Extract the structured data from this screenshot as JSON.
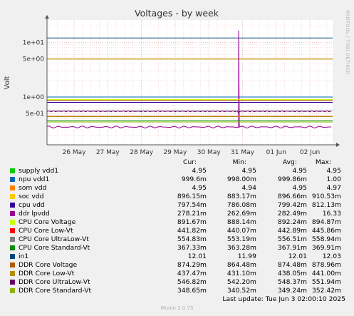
{
  "chart_data": {
    "type": "line",
    "title": "Voltages - by week",
    "ylabel": "Volt",
    "yscale": "log",
    "ylim": [
      0.18,
      30
    ],
    "y_ticks": [
      {
        "v": 0.5,
        "label": "5e-01"
      },
      {
        "v": 1,
        "label": "1e+00"
      },
      {
        "v": 5,
        "label": "5e+00"
      },
      {
        "v": 10,
        "label": "1e+01"
      }
    ],
    "x_ticks": [
      "26 May",
      "27 May",
      "28 May",
      "29 May",
      "30 May",
      "31 May",
      "01 Jun",
      "02 Jun"
    ],
    "grid": true,
    "series": [
      {
        "name": "supply vdd1",
        "color": "#00cc00",
        "cur": "4.95",
        "min": "4.95",
        "avg": "4.95",
        "max": "4.95",
        "level": 4.95
      },
      {
        "name": "npu vdd1",
        "color": "#0066b3",
        "cur": "999.6m",
        "min": "998.00m",
        "avg": "999.86m",
        "max": "1.00",
        "level": 0.9999
      },
      {
        "name": "som vdd",
        "color": "#ff8000",
        "cur": "4.95",
        "min": "4.94",
        "avg": "4.95",
        "max": "4.97",
        "level": 4.95
      },
      {
        "name": "soc vdd",
        "color": "#ffcc00",
        "cur": "896.15m",
        "min": "883.17m",
        "avg": "896.66m",
        "max": "910.53m",
        "level": 0.8966
      },
      {
        "name": "cpu vdd",
        "color": "#330099",
        "cur": "797.54m",
        "min": "786.08m",
        "avg": "799.42m",
        "max": "812.13m",
        "level": 0.7994
      },
      {
        "name": "ddr lpvdd",
        "color": "#990099",
        "cur": "278.21m",
        "min": "262.69m",
        "avg": "282.49m",
        "max": "16.33",
        "level": 0.2825,
        "spike": 16.33
      },
      {
        "name": "CPU Core Voltage",
        "color": "#ccff00",
        "cur": "891.67m",
        "min": "888.14m",
        "avg": "892.24m",
        "max": "894.87m",
        "level": 0.8922
      },
      {
        "name": "CPU Core Low-Vt",
        "color": "#ff0000",
        "cur": "441.82m",
        "min": "440.07m",
        "avg": "442.89m",
        "max": "445.86m",
        "level": 0.4429
      },
      {
        "name": "CPU Core UltraLow-Vt",
        "color": "#808080",
        "cur": "554.83m",
        "min": "553.19m",
        "avg": "556.51m",
        "max": "558.94m",
        "level": 0.5565
      },
      {
        "name": "CPU Core Standard-Vt",
        "color": "#008f00",
        "cur": "367.33m",
        "min": "363.28m",
        "avg": "367.91m",
        "max": "369.91m",
        "level": 0.3679
      },
      {
        "name": "in1",
        "color": "#00487d",
        "cur": "12.01",
        "min": "11.99",
        "avg": "12.01",
        "max": "12.03",
        "level": 12.01
      },
      {
        "name": "DDR Core Voltage",
        "color": "#b35a00",
        "cur": "874.29m",
        "min": "864.48m",
        "avg": "874.48m",
        "max": "878.96m",
        "level": 0.8745
      },
      {
        "name": "DDR Core Low-Vt",
        "color": "#b38f00",
        "cur": "437.47m",
        "min": "431.10m",
        "avg": "438.05m",
        "max": "441.00m",
        "level": 0.438
      },
      {
        "name": "DDR Core UltraLow-Vt",
        "color": "#6b006b",
        "cur": "546.82m",
        "min": "542.20m",
        "avg": "548.37m",
        "max": "551.94m",
        "level": 0.5484
      },
      {
        "name": "DDR Core Standard-Vt",
        "color": "#8fb300",
        "cur": "348.65m",
        "min": "340.52m",
        "avg": "349.24m",
        "max": "352.42m",
        "level": 0.3492
      }
    ]
  },
  "headers": {
    "cur": "Cur:",
    "min": "Min:",
    "avg": "Avg:",
    "max": "Max:"
  },
  "footer": {
    "last_update": "Last update: Tue Jun  3 02:00:10 2025",
    "generator": "Munin 2.0.73"
  },
  "side_label": "RRDTOOL / TOBI OETIKER"
}
